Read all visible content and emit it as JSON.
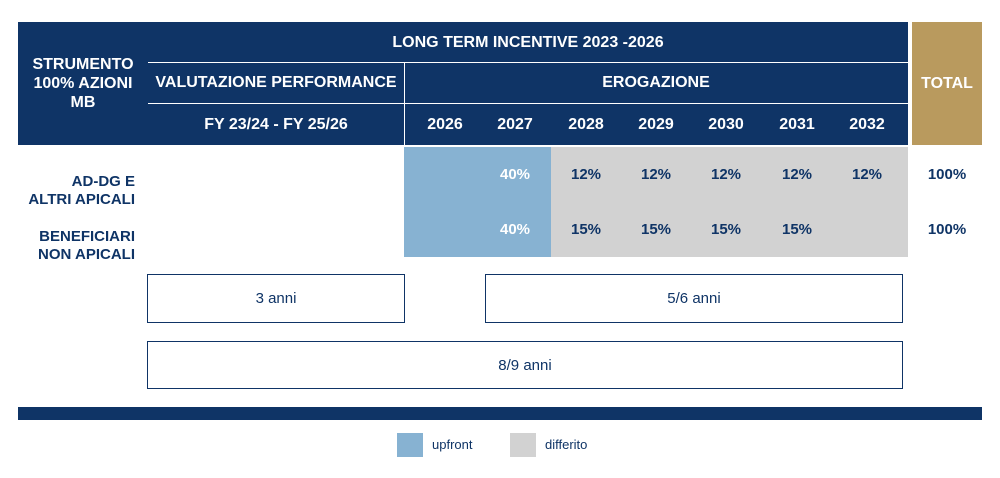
{
  "header": {
    "title": "LONG TERM INCENTIVE 2023 -2026",
    "strumento": "STRUMENTO\n100% AZIONI\nMB",
    "valutazione": "VALUTAZIONE PERFORMANCE",
    "erogazione": "EROGAZIONE",
    "total": "TOTAL",
    "period": "FY 23/24 - FY 25/26",
    "years": [
      "2026",
      "2027",
      "2028",
      "2029",
      "2030",
      "2031",
      "2032"
    ]
  },
  "rows": [
    {
      "label": "AD-DG E\nALTRI APICALI",
      "values": [
        "",
        "40%",
        "12%",
        "12%",
        "12%",
        "12%",
        "12%"
      ],
      "total": "100%"
    },
    {
      "label": "BENEFICIARI\nNON APICALI",
      "values": [
        "",
        "40%",
        "15%",
        "15%",
        "15%",
        "15%",
        ""
      ],
      "total": "100%"
    }
  ],
  "timeline": {
    "box1": "3 anni",
    "box2": "5/6 anni",
    "box3": "8/9 anni"
  },
  "legend": [
    {
      "label": "upfront",
      "color": "#87b2d2"
    },
    {
      "label": "differito",
      "color": "#d2d2d2"
    }
  ],
  "colors": {
    "navy": "#0f3466",
    "gold": "#b99a5e",
    "upfront": "#87b2d2",
    "differito": "#d2d2d2"
  }
}
